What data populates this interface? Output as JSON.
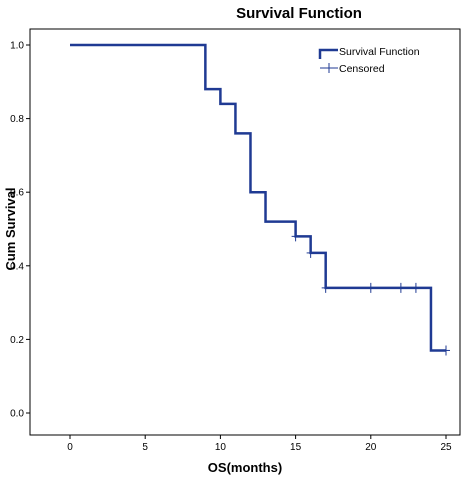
{
  "chart_data": {
    "type": "line",
    "title": "Survival Function",
    "xlabel": "OS(months)",
    "ylabel": "Cum Survival",
    "xlim": [
      0,
      25
    ],
    "ylim": [
      0,
      1
    ],
    "xticks": [
      0,
      5,
      10,
      15,
      20,
      25
    ],
    "yticks": [
      0.0,
      0.2,
      0.4,
      0.6,
      0.8,
      1.0
    ],
    "yticklabels": [
      "0.0",
      "0.2",
      "0.4",
      "0.6",
      "0.8",
      "1.0"
    ],
    "grid": false,
    "legend_position": "top-right",
    "series": [
      {
        "name": "Survival Function",
        "step": true,
        "color": "#1f3a93",
        "x": [
          0,
          9,
          10,
          11,
          12,
          13,
          15,
          16,
          17,
          24,
          25
        ],
        "y": [
          1.0,
          0.88,
          0.84,
          0.76,
          0.6,
          0.52,
          0.48,
          0.435,
          0.34,
          0.17,
          0.17
        ]
      },
      {
        "name": "Censored",
        "marker": "plus",
        "color": "#1f3a93",
        "x": [
          15,
          16,
          17,
          20,
          22,
          23,
          25
        ],
        "y": [
          0.48,
          0.435,
          0.34,
          0.34,
          0.34,
          0.34,
          0.17
        ]
      }
    ]
  }
}
